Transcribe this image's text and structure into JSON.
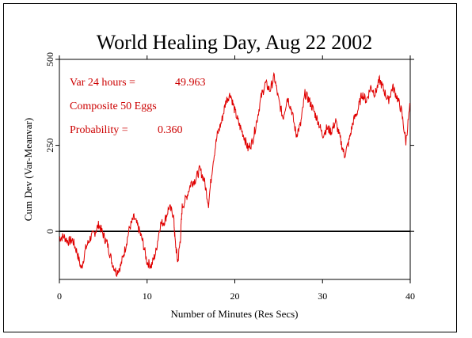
{
  "chart_data": {
    "type": "line",
    "title": "World Healing Day, Aug 22 2002",
    "xlabel": "Number of Minutes (Res Secs)",
    "ylabel": "Cum Dev (Var-Meanvar)",
    "xlim": [
      0,
      40
    ],
    "ylim": [
      -140,
      500
    ],
    "xticks": [
      "0",
      "10",
      "20",
      "30",
      "40"
    ],
    "yticks": [
      "0",
      "250",
      "500"
    ],
    "zero_line": 0,
    "line_color": "#e00000",
    "annotation_color": "#cc0000",
    "annotations": {
      "var_label": "Var 24 hours =",
      "var_value": "49.963",
      "composite": "Composite 50 Eggs",
      "prob_label": "Probability =",
      "prob_value": "0.360"
    },
    "series": [
      {
        "values": [
          [
            0,
            -20
          ],
          [
            0.5,
            -15
          ],
          [
            1,
            -30
          ],
          [
            1.5,
            -25
          ],
          [
            2,
            -60
          ],
          [
            2.5,
            -110
          ],
          [
            3,
            -50
          ],
          [
            3.5,
            -20
          ],
          [
            4,
            -5
          ],
          [
            4.5,
            20
          ],
          [
            5,
            -10
          ],
          [
            5.5,
            -40
          ],
          [
            6,
            -90
          ],
          [
            6.5,
            -120
          ],
          [
            7,
            -100
          ],
          [
            7.5,
            -50
          ],
          [
            8,
            10
          ],
          [
            8.5,
            40
          ],
          [
            9,
            10
          ],
          [
            9.5,
            -30
          ],
          [
            10,
            -90
          ],
          [
            10.5,
            -100
          ],
          [
            11,
            -60
          ],
          [
            11.5,
            20
          ],
          [
            12,
            30
          ],
          [
            12.5,
            70
          ],
          [
            13,
            50
          ],
          [
            13.2,
            -30
          ],
          [
            13.5,
            -90
          ],
          [
            13.8,
            -20
          ],
          [
            14,
            70
          ],
          [
            14.5,
            100
          ],
          [
            15,
            140
          ],
          [
            15.5,
            150
          ],
          [
            16,
            180
          ],
          [
            16.5,
            150
          ],
          [
            17,
            80
          ],
          [
            17.5,
            200
          ],
          [
            18,
            280
          ],
          [
            18.5,
            320
          ],
          [
            19,
            380
          ],
          [
            19.5,
            400
          ],
          [
            20,
            350
          ],
          [
            20.5,
            310
          ],
          [
            21,
            280
          ],
          [
            21.5,
            240
          ],
          [
            22,
            260
          ],
          [
            22.5,
            320
          ],
          [
            23,
            390
          ],
          [
            23.5,
            430
          ],
          [
            24,
            410
          ],
          [
            24.5,
            450
          ],
          [
            25,
            380
          ],
          [
            25.5,
            330
          ],
          [
            26,
            390
          ],
          [
            26.5,
            350
          ],
          [
            27,
            280
          ],
          [
            27.5,
            310
          ],
          [
            28,
            400
          ],
          [
            28.5,
            380
          ],
          [
            29,
            350
          ],
          [
            29.5,
            320
          ],
          [
            30,
            280
          ],
          [
            30.5,
            300
          ],
          [
            31,
            290
          ],
          [
            31.5,
            320
          ],
          [
            32,
            270
          ],
          [
            32.5,
            220
          ],
          [
            33,
            260
          ],
          [
            33.5,
            320
          ],
          [
            34,
            350
          ],
          [
            34.5,
            400
          ],
          [
            35,
            380
          ],
          [
            35.5,
            420
          ],
          [
            36,
            400
          ],
          [
            36.5,
            440
          ],
          [
            37,
            410
          ],
          [
            37.5,
            380
          ],
          [
            38,
            420
          ],
          [
            38.5,
            390
          ],
          [
            39,
            350
          ],
          [
            39.5,
            260
          ],
          [
            40,
            370
          ]
        ]
      }
    ]
  }
}
